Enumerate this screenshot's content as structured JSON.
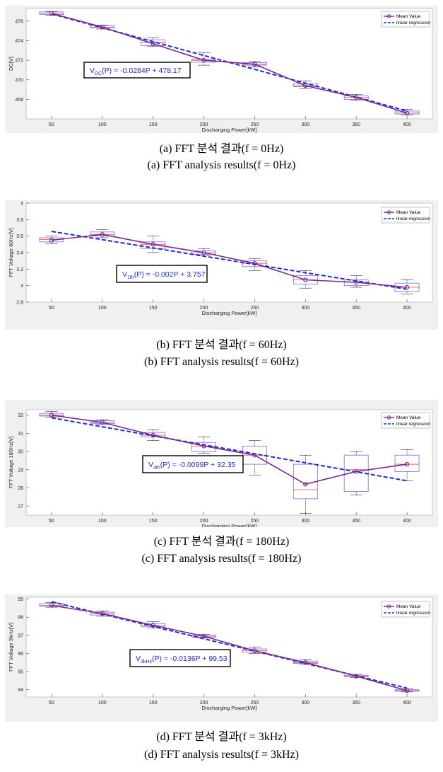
{
  "figures": [
    {
      "caption_ko": "(a)  FFT  분석  결과(f  =  0Hz)",
      "caption_en": "(a)  FFT  analysis  results(f  =  0Hz)",
      "equation": {
        "prefix": "V",
        "sub": "DC",
        "suffix": "(P) = -0.0284P + 478.17"
      }
    },
    {
      "caption_ko": "(b)  FFT  분석  결과(f  =  60Hz)",
      "caption_en": "(b)  FFT  analysis  results(f  =  60Hz)",
      "equation": {
        "prefix": "V",
        "sub": "1th",
        "suffix": "(P) = -0.002P + 3.757"
      }
    },
    {
      "caption_ko": "(c)  FFT  분석  결과(f  =  180Hz)",
      "caption_en": "(c)  FFT  analysis  results(f  =  180Hz)",
      "equation": {
        "prefix": "V",
        "sub": "3th",
        "suffix": "(P) = -0.0099P + 32.35"
      }
    },
    {
      "caption_ko": "(d)  FFT  분석  결과(f  =  3kHz)",
      "caption_en": "(d)  FFT  analysis  results(f  =  3kHz)",
      "equation": {
        "prefix": "V",
        "sub": "3kHz",
        "suffix": "(P) = -0.0136P + 99.53"
      }
    }
  ],
  "colors": {
    "mean_line": "#7b2a8e",
    "regression_line": "#1f2bd6",
    "box": "#6b6bff",
    "median": "#ff4040",
    "frame_bg": "#f0f0f0",
    "plot_bg": "#ffffff"
  },
  "chart_data": [
    {
      "type": "line",
      "xlabel": "Discharging Power[kW]",
      "ylabel": "DC[V]",
      "x": [
        50,
        100,
        150,
        200,
        250,
        300,
        350,
        400
      ],
      "ylim": [
        466,
        477.3
      ],
      "yticks": [
        468,
        470,
        472,
        474,
        476
      ],
      "legend_position": "top-right",
      "series": [
        {
          "name": "Mean Value",
          "values": [
            476.8,
            475.4,
            473.7,
            472.0,
            471.6,
            469.4,
            468.2,
            466.6
          ]
        },
        {
          "name": "linear regression",
          "values": [
            476.75,
            475.33,
            473.91,
            472.49,
            471.07,
            469.65,
            468.23,
            466.81
          ]
        }
      ],
      "boxes": [
        {
          "low": 476.6,
          "q1": 476.7,
          "median": 476.8,
          "q3": 476.95,
          "high": 477.0
        },
        {
          "low": 475.2,
          "q1": 475.3,
          "median": 475.4,
          "q3": 475.55,
          "high": 475.6
        },
        {
          "low": 473.4,
          "q1": 473.5,
          "median": 473.8,
          "q3": 474.1,
          "high": 474.3
        },
        {
          "low": 471.5,
          "q1": 471.8,
          "median": 472.0,
          "q3": 472.1,
          "high": 472.8
        },
        {
          "low": 471.3,
          "q1": 471.5,
          "median": 471.6,
          "q3": 471.75,
          "high": 471.9
        },
        {
          "low": 469.1,
          "q1": 469.3,
          "median": 469.4,
          "q3": 469.6,
          "high": 469.9
        },
        {
          "low": 467.9,
          "q1": 468.0,
          "median": 468.2,
          "q3": 468.35,
          "high": 468.5
        },
        {
          "low": 466.4,
          "q1": 466.5,
          "median": 466.6,
          "q3": 466.8,
          "high": 467.0
        }
      ]
    },
    {
      "type": "line",
      "xlabel": "Discharging Power[kW]",
      "ylabel": "FFT Voltage 60Hz[V]",
      "x": [
        50,
        100,
        150,
        200,
        250,
        300,
        350,
        400
      ],
      "ylim": [
        2.8,
        4.0
      ],
      "yticks": [
        2.8,
        3.0,
        3.2,
        3.4,
        3.6,
        3.8,
        4.0
      ],
      "legend_position": "top-right",
      "series": [
        {
          "name": "Mean Value",
          "values": [
            3.55,
            3.62,
            3.5,
            3.4,
            3.27,
            3.07,
            3.04,
            2.98
          ]
        },
        {
          "name": "linear regression",
          "values": [
            3.657,
            3.557,
            3.457,
            3.357,
            3.257,
            3.157,
            3.057,
            2.957
          ]
        }
      ],
      "boxes": [
        {
          "low": 3.51,
          "q1": 3.53,
          "median": 3.56,
          "q3": 3.58,
          "high": 3.6
        },
        {
          "low": 3.58,
          "q1": 3.6,
          "median": 3.62,
          "q3": 3.65,
          "high": 3.68
        },
        {
          "low": 3.4,
          "q1": 3.45,
          "median": 3.5,
          "q3": 3.53,
          "high": 3.6
        },
        {
          "low": 3.36,
          "q1": 3.38,
          "median": 3.4,
          "q3": 3.42,
          "high": 3.45
        },
        {
          "low": 3.18,
          "q1": 3.23,
          "median": 3.27,
          "q3": 3.3,
          "high": 3.33
        },
        {
          "low": 2.97,
          "q1": 3.02,
          "median": 3.07,
          "q3": 3.12,
          "high": 3.18
        },
        {
          "low": 2.98,
          "q1": 3.0,
          "median": 3.04,
          "q3": 3.07,
          "high": 3.12
        },
        {
          "low": 2.9,
          "q1": 2.93,
          "median": 2.98,
          "q3": 3.03,
          "high": 3.07
        }
      ]
    },
    {
      "type": "line",
      "xlabel": "Discharging Power[kW]",
      "ylabel": "FFT Voltage 180Hz[V]",
      "x": [
        50,
        100,
        150,
        200,
        250,
        300,
        350,
        400
      ],
      "ylim": [
        26.5,
        32.3
      ],
      "yticks": [
        27,
        28,
        29,
        30,
        31,
        32
      ],
      "legend_position": "top-right",
      "series": [
        {
          "name": "Mean Value",
          "values": [
            32.0,
            31.6,
            30.9,
            30.3,
            29.8,
            28.2,
            28.9,
            29.3
          ]
        },
        {
          "name": "linear regression",
          "values": [
            31.855,
            31.36,
            30.865,
            30.37,
            29.875,
            29.38,
            28.885,
            28.39
          ]
        }
      ],
      "boxes": [
        {
          "low": 31.9,
          "q1": 31.95,
          "median": 32.0,
          "q3": 32.1,
          "high": 32.2
        },
        {
          "low": 31.5,
          "q1": 31.55,
          "median": 31.6,
          "q3": 31.7,
          "high": 31.75
        },
        {
          "low": 30.6,
          "q1": 30.8,
          "median": 30.9,
          "q3": 31.05,
          "high": 31.2
        },
        {
          "low": 29.9,
          "q1": 30.0,
          "median": 30.3,
          "q3": 30.5,
          "high": 30.8
        },
        {
          "low": 28.7,
          "q1": 29.3,
          "median": 29.8,
          "q3": 30.3,
          "high": 30.6
        },
        {
          "low": 26.6,
          "q1": 27.4,
          "median": 27.9,
          "q3": 29.3,
          "high": 29.8
        },
        {
          "low": 27.6,
          "q1": 27.8,
          "median": 29.0,
          "q3": 29.8,
          "high": 30.0
        },
        {
          "low": 28.4,
          "q1": 28.9,
          "median": 29.3,
          "q3": 29.8,
          "high": 30.1
        }
      ]
    },
    {
      "type": "line",
      "xlabel": "Discharging Power[kW]",
      "ylabel": "FFT Voltage 3kHz[V]",
      "x": [
        50,
        100,
        150,
        200,
        250,
        300,
        350,
        400
      ],
      "ylim": [
        93.6,
        99.1
      ],
      "yticks": [
        94,
        95,
        96,
        97,
        98,
        99
      ],
      "legend_position": "top-right",
      "series": [
        {
          "name": "Mean Value",
          "values": [
            98.65,
            98.2,
            97.55,
            96.95,
            96.15,
            95.5,
            94.75,
            93.95
          ]
        },
        {
          "name": "linear regression",
          "values": [
            98.85,
            98.17,
            97.49,
            96.81,
            96.13,
            95.45,
            94.77,
            94.09
          ]
        }
      ],
      "boxes": [
        {
          "low": 98.55,
          "q1": 98.6,
          "median": 98.65,
          "q3": 98.75,
          "high": 98.8
        },
        {
          "low": 98.05,
          "q1": 98.12,
          "median": 98.2,
          "q3": 98.28,
          "high": 98.35
        },
        {
          "low": 97.4,
          "q1": 97.47,
          "median": 97.55,
          "q3": 97.65,
          "high": 97.75
        },
        {
          "low": 96.85,
          "q1": 96.9,
          "median": 96.95,
          "q3": 97.0,
          "high": 97.05
        },
        {
          "low": 96.0,
          "q1": 96.08,
          "median": 96.15,
          "q3": 96.25,
          "high": 96.35
        },
        {
          "low": 95.4,
          "q1": 95.45,
          "median": 95.5,
          "q3": 95.58,
          "high": 95.65
        },
        {
          "low": 94.68,
          "q1": 94.72,
          "median": 94.75,
          "q3": 94.8,
          "high": 94.85
        },
        {
          "low": 93.88,
          "q1": 93.92,
          "median": 93.95,
          "q3": 94.0,
          "high": 94.05
        }
      ]
    }
  ]
}
